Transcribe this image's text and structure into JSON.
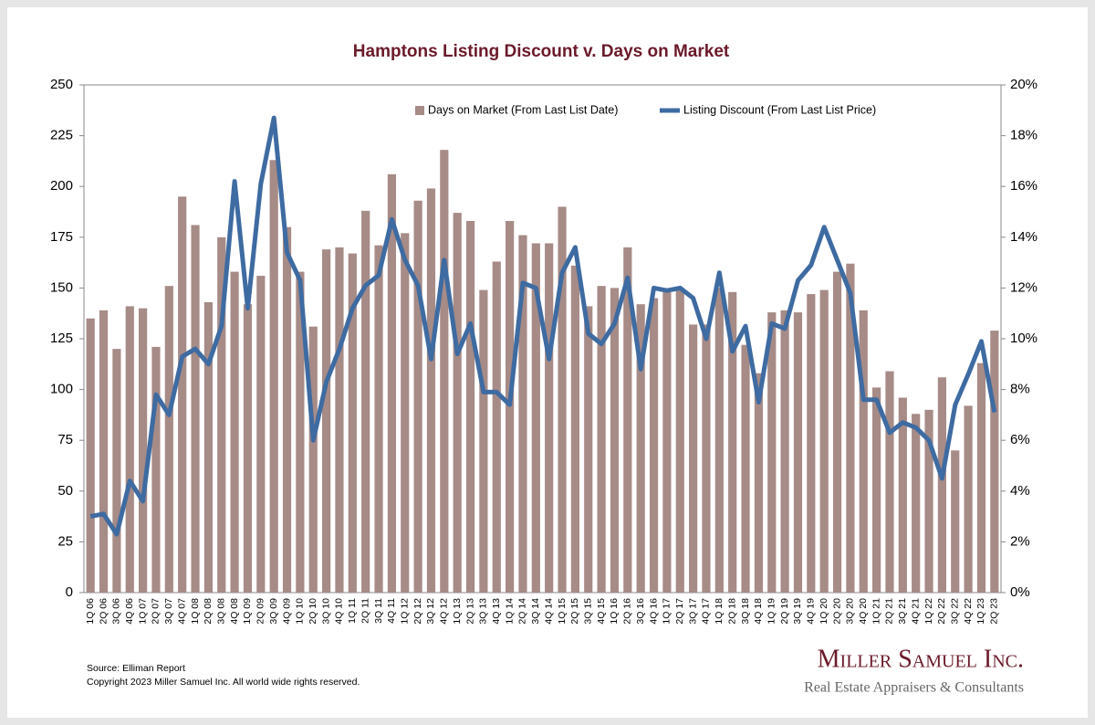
{
  "chart_data": {
    "type": "bar-line",
    "title": "Hamptons Listing Discount v. Days on Market",
    "categories": [
      "1Q 06",
      "2Q 06",
      "3Q 06",
      "4Q 06",
      "1Q 07",
      "2Q 07",
      "3Q 07",
      "4Q 07",
      "1Q 08",
      "2Q 08",
      "3Q 08",
      "4Q 08",
      "1Q 09",
      "2Q 09",
      "3Q 09",
      "4Q 09",
      "1Q 10",
      "2Q 10",
      "3Q 10",
      "4Q 10",
      "1Q 11",
      "2Q 11",
      "3Q 11",
      "4Q 11",
      "1Q 12",
      "2Q 12",
      "3Q 12",
      "4Q 12",
      "1Q 13",
      "2Q 13",
      "3Q 13",
      "4Q 13",
      "1Q 14",
      "2Q 14",
      "3Q 14",
      "4Q 14",
      "1Q 15",
      "2Q 15",
      "3Q 15",
      "4Q 15",
      "1Q 16",
      "2Q 16",
      "3Q 16",
      "4Q 16",
      "1Q 17",
      "2Q 17",
      "3Q 17",
      "4Q 17",
      "1Q 18",
      "2Q 18",
      "3Q 18",
      "4Q 18",
      "1Q 19",
      "2Q 19",
      "3Q 19",
      "4Q 19",
      "1Q 20",
      "2Q 20",
      "3Q 20",
      "4Q 20",
      "1Q 21",
      "2Q 21",
      "3Q 21",
      "4Q 21",
      "1Q 22",
      "2Q 22",
      "3Q 22",
      "4Q 22",
      "1Q 23",
      "2Q 23"
    ],
    "series": [
      {
        "name": "Days on Market (From Last List Date)",
        "type": "bar",
        "color": "#a68b87",
        "axis": "y",
        "values": [
          135,
          139,
          120,
          141,
          140,
          121,
          151,
          195,
          181,
          143,
          175,
          158,
          142,
          156,
          213,
          180,
          158,
          131,
          169,
          170,
          167,
          188,
          171,
          206,
          177,
          193,
          199,
          218,
          187,
          183,
          149,
          163,
          183,
          176,
          172,
          172,
          190,
          161,
          141,
          151,
          150,
          170,
          142,
          145,
          148,
          150,
          132,
          132,
          150,
          148,
          122,
          108,
          138,
          139,
          138,
          147,
          149,
          158,
          162,
          139,
          101,
          109,
          96,
          88,
          90,
          106,
          70,
          92,
          113,
          129
        ]
      },
      {
        "name": "Listing Discount (From Last List Price)",
        "type": "line",
        "color": "#3e6ba1",
        "axis": "y2",
        "values": [
          3.0,
          3.1,
          2.3,
          4.4,
          3.6,
          7.8,
          7.0,
          9.3,
          9.6,
          9.0,
          10.5,
          16.2,
          11.2,
          16.1,
          18.7,
          13.4,
          12.3,
          6.0,
          8.3,
          9.6,
          11.2,
          12.1,
          12.5,
          14.7,
          13.1,
          12.1,
          9.2,
          13.1,
          9.4,
          10.6,
          7.9,
          7.9,
          7.4,
          12.2,
          12.0,
          9.2,
          12.6,
          13.6,
          10.2,
          9.8,
          10.6,
          12.4,
          8.8,
          12.0,
          11.9,
          12.0,
          11.6,
          10.0,
          12.6,
          9.5,
          10.5,
          7.5,
          10.6,
          10.4,
          12.3,
          12.9,
          14.4,
          13.1,
          11.8,
          7.6,
          7.6,
          6.3,
          6.7,
          6.5,
          6.0,
          4.5,
          7.4,
          8.6,
          9.9,
          7.1
        ]
      }
    ],
    "ylim": [
      0,
      250
    ],
    "yticks": [
      0,
      25,
      50,
      75,
      100,
      125,
      150,
      175,
      200,
      225,
      250
    ],
    "y2lim": [
      0,
      20
    ],
    "y2ticks": [
      {
        "value": 0,
        "label": "0%"
      },
      {
        "value": 2,
        "label": "2%"
      },
      {
        "value": 4,
        "label": "4%"
      },
      {
        "value": 6,
        "label": "6%"
      },
      {
        "value": 8,
        "label": "8%"
      },
      {
        "value": 10,
        "label": "10%"
      },
      {
        "value": 12,
        "label": "12%"
      },
      {
        "value": 14,
        "label": "14%"
      },
      {
        "value": 16,
        "label": "16%"
      },
      {
        "value": 18,
        "label": "18%"
      },
      {
        "value": 20,
        "label": "20%"
      }
    ],
    "legend": "top",
    "source": "Source: Elliman Report",
    "copyright": "Copyright 2023 Miller Samuel Inc.  All world wide rights reserved.",
    "brand": "Miller Samuel Inc.",
    "tagline": "Real Estate Appraisers & Consultants"
  }
}
